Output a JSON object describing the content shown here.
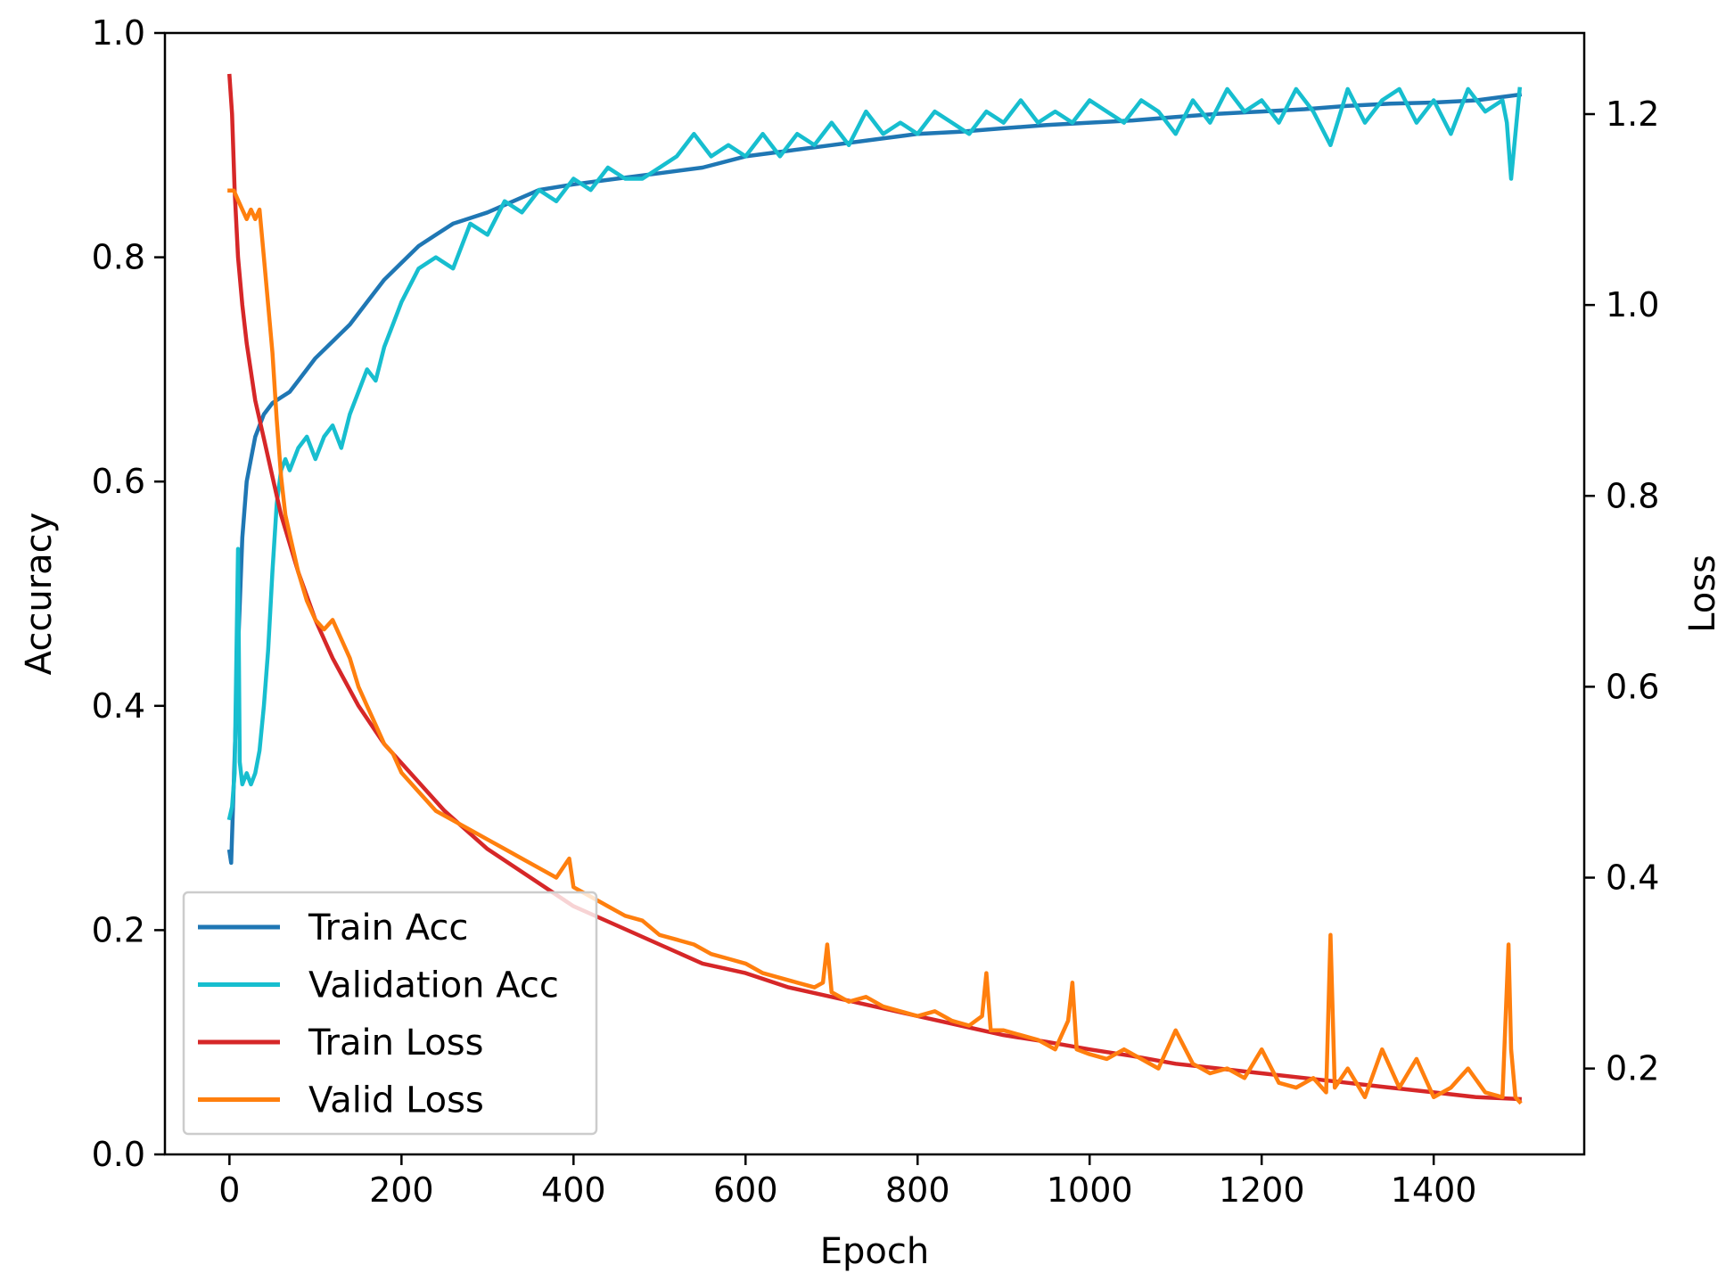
{
  "chart_data": {
    "type": "line",
    "xlabel": "Epoch",
    "ylabel_left": "Accuracy",
    "ylabel_right": "Loss",
    "xlim": [
      -75,
      1575
    ],
    "ylim_left": [
      0.0,
      1.0
    ],
    "ylim_right": [
      0.11,
      1.285
    ],
    "grid": false,
    "legend_position": "lower-left",
    "x_ticks": [
      {
        "value": 0,
        "label": "0"
      },
      {
        "value": 200,
        "label": "200"
      },
      {
        "value": 400,
        "label": "400"
      },
      {
        "value": 600,
        "label": "600"
      },
      {
        "value": 800,
        "label": "800"
      },
      {
        "value": 1000,
        "label": "1000"
      },
      {
        "value": 1200,
        "label": "1200"
      },
      {
        "value": 1400,
        "label": "1400"
      }
    ],
    "y_left_ticks": [
      {
        "value": 0.0,
        "label": "0.0"
      },
      {
        "value": 0.2,
        "label": "0.2"
      },
      {
        "value": 0.4,
        "label": "0.4"
      },
      {
        "value": 0.6,
        "label": "0.6"
      },
      {
        "value": 0.8,
        "label": "0.8"
      },
      {
        "value": 1.0,
        "label": "1.0"
      }
    ],
    "y_right_ticks": [
      {
        "value": 0.2,
        "label": "0.2"
      },
      {
        "value": 0.4,
        "label": "0.4"
      },
      {
        "value": 0.6,
        "label": "0.6"
      },
      {
        "value": 0.8,
        "label": "0.8"
      },
      {
        "value": 1.0,
        "label": "1.0"
      },
      {
        "value": 1.2,
        "label": "1.2"
      }
    ],
    "series": [
      {
        "name": "Train Acc",
        "axis": "left",
        "color": "#1f77b4",
        "x": [
          0,
          2,
          5,
          10,
          15,
          20,
          25,
          30,
          40,
          50,
          60,
          70,
          80,
          100,
          120,
          140,
          160,
          180,
          200,
          220,
          240,
          260,
          280,
          300,
          330,
          360,
          400,
          450,
          500,
          550,
          600,
          650,
          700,
          750,
          800,
          850,
          900,
          950,
          1000,
          1050,
          1100,
          1150,
          1200,
          1250,
          1300,
          1350,
          1400,
          1450,
          1500
        ],
        "values": [
          0.27,
          0.26,
          0.33,
          0.45,
          0.55,
          0.6,
          0.62,
          0.64,
          0.66,
          0.67,
          0.675,
          0.68,
          0.69,
          0.71,
          0.725,
          0.74,
          0.76,
          0.78,
          0.795,
          0.81,
          0.82,
          0.83,
          0.835,
          0.84,
          0.85,
          0.86,
          0.865,
          0.87,
          0.875,
          0.88,
          0.89,
          0.895,
          0.9,
          0.905,
          0.91,
          0.912,
          0.915,
          0.918,
          0.92,
          0.922,
          0.925,
          0.928,
          0.93,
          0.932,
          0.935,
          0.937,
          0.938,
          0.94,
          0.945
        ]
      },
      {
        "name": "Validation Acc",
        "axis": "left",
        "color": "#17becf",
        "x": [
          0,
          3,
          6,
          10,
          12,
          15,
          20,
          25,
          30,
          35,
          40,
          45,
          50,
          55,
          60,
          65,
          70,
          80,
          90,
          100,
          110,
          120,
          130,
          140,
          150,
          160,
          170,
          180,
          190,
          200,
          220,
          240,
          260,
          280,
          300,
          320,
          340,
          360,
          380,
          400,
          420,
          440,
          460,
          480,
          500,
          520,
          540,
          560,
          580,
          600,
          620,
          640,
          660,
          680,
          700,
          720,
          740,
          760,
          780,
          800,
          820,
          840,
          860,
          880,
          900,
          920,
          940,
          960,
          980,
          1000,
          1020,
          1040,
          1060,
          1080,
          1100,
          1120,
          1140,
          1160,
          1180,
          1200,
          1220,
          1240,
          1260,
          1280,
          1300,
          1320,
          1340,
          1360,
          1380,
          1400,
          1420,
          1440,
          1460,
          1480,
          1485,
          1490,
          1500
        ],
        "values": [
          0.3,
          0.31,
          0.34,
          0.54,
          0.35,
          0.33,
          0.34,
          0.33,
          0.34,
          0.36,
          0.4,
          0.45,
          0.52,
          0.58,
          0.61,
          0.62,
          0.61,
          0.63,
          0.64,
          0.62,
          0.64,
          0.65,
          0.63,
          0.66,
          0.68,
          0.7,
          0.69,
          0.72,
          0.74,
          0.76,
          0.79,
          0.8,
          0.79,
          0.83,
          0.82,
          0.85,
          0.84,
          0.86,
          0.85,
          0.87,
          0.86,
          0.88,
          0.87,
          0.87,
          0.88,
          0.89,
          0.91,
          0.89,
          0.9,
          0.89,
          0.91,
          0.89,
          0.91,
          0.9,
          0.92,
          0.9,
          0.93,
          0.91,
          0.92,
          0.91,
          0.93,
          0.92,
          0.91,
          0.93,
          0.92,
          0.94,
          0.92,
          0.93,
          0.92,
          0.94,
          0.93,
          0.92,
          0.94,
          0.93,
          0.91,
          0.94,
          0.92,
          0.95,
          0.93,
          0.94,
          0.92,
          0.95,
          0.93,
          0.9,
          0.95,
          0.92,
          0.94,
          0.95,
          0.92,
          0.94,
          0.91,
          0.95,
          0.93,
          0.94,
          0.92,
          0.87,
          0.95
        ]
      },
      {
        "name": "Train Loss",
        "axis": "right",
        "color": "#d62728",
        "x": [
          0,
          3,
          6,
          10,
          15,
          20,
          30,
          40,
          50,
          60,
          80,
          100,
          120,
          150,
          180,
          200,
          250,
          300,
          350,
          400,
          450,
          500,
          550,
          600,
          650,
          700,
          750,
          800,
          850,
          900,
          950,
          1000,
          1050,
          1100,
          1150,
          1200,
          1250,
          1300,
          1350,
          1400,
          1450,
          1500
        ],
        "values": [
          1.24,
          1.2,
          1.12,
          1.05,
          1.0,
          0.96,
          0.9,
          0.86,
          0.82,
          0.78,
          0.72,
          0.67,
          0.63,
          0.58,
          0.54,
          0.52,
          0.47,
          0.43,
          0.4,
          0.37,
          0.35,
          0.33,
          0.31,
          0.3,
          0.285,
          0.275,
          0.265,
          0.255,
          0.245,
          0.235,
          0.228,
          0.22,
          0.213,
          0.205,
          0.2,
          0.195,
          0.19,
          0.185,
          0.18,
          0.175,
          0.17,
          0.168
        ]
      },
      {
        "name": "Valid Loss",
        "axis": "right",
        "color": "#ff7f0e",
        "x": [
          0,
          5,
          10,
          15,
          20,
          25,
          30,
          35,
          40,
          45,
          50,
          55,
          60,
          65,
          70,
          80,
          90,
          100,
          110,
          120,
          130,
          140,
          150,
          160,
          170,
          180,
          190,
          200,
          220,
          240,
          260,
          280,
          300,
          320,
          340,
          360,
          380,
          395,
          400,
          420,
          440,
          460,
          480,
          500,
          520,
          540,
          560,
          580,
          600,
          620,
          640,
          660,
          680,
          690,
          695,
          700,
          720,
          740,
          760,
          780,
          800,
          820,
          840,
          860,
          875,
          880,
          885,
          900,
          920,
          940,
          960,
          975,
          980,
          985,
          1000,
          1020,
          1040,
          1060,
          1080,
          1100,
          1120,
          1140,
          1160,
          1180,
          1200,
          1220,
          1240,
          1260,
          1275,
          1280,
          1285,
          1300,
          1320,
          1340,
          1360,
          1380,
          1400,
          1420,
          1440,
          1460,
          1480,
          1487,
          1490,
          1495,
          1500
        ],
        "values": [
          1.12,
          1.12,
          1.11,
          1.1,
          1.09,
          1.1,
          1.09,
          1.1,
          1.05,
          1.0,
          0.95,
          0.88,
          0.82,
          0.78,
          0.76,
          0.72,
          0.69,
          0.67,
          0.66,
          0.67,
          0.65,
          0.63,
          0.6,
          0.58,
          0.56,
          0.54,
          0.53,
          0.51,
          0.49,
          0.47,
          0.46,
          0.45,
          0.44,
          0.43,
          0.42,
          0.41,
          0.4,
          0.42,
          0.39,
          0.38,
          0.37,
          0.36,
          0.355,
          0.34,
          0.335,
          0.33,
          0.32,
          0.315,
          0.31,
          0.3,
          0.295,
          0.29,
          0.285,
          0.29,
          0.33,
          0.28,
          0.27,
          0.275,
          0.265,
          0.26,
          0.255,
          0.26,
          0.25,
          0.245,
          0.255,
          0.3,
          0.24,
          0.24,
          0.235,
          0.23,
          0.22,
          0.25,
          0.29,
          0.22,
          0.215,
          0.21,
          0.22,
          0.21,
          0.2,
          0.24,
          0.205,
          0.195,
          0.2,
          0.19,
          0.22,
          0.185,
          0.18,
          0.19,
          0.175,
          0.34,
          0.18,
          0.2,
          0.17,
          0.22,
          0.18,
          0.21,
          0.17,
          0.18,
          0.2,
          0.175,
          0.17,
          0.33,
          0.22,
          0.17,
          0.165
        ]
      }
    ]
  }
}
